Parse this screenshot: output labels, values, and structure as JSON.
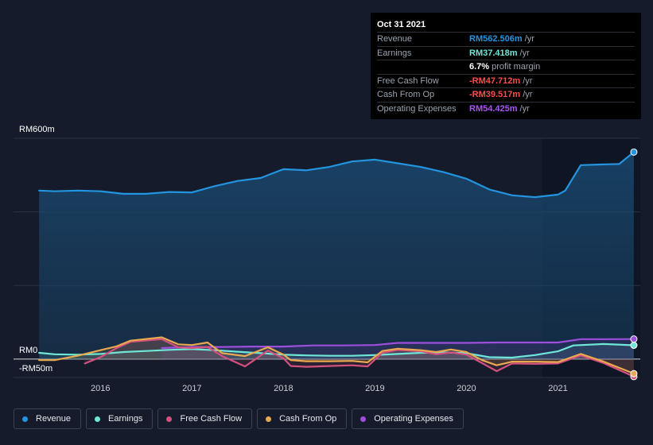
{
  "tooltip": {
    "date": "Oct 31 2021",
    "rows": [
      {
        "label": "Revenue",
        "value": "RM562.506m",
        "unit": "/yr",
        "color": "#2394df"
      },
      {
        "label": "Earnings",
        "value": "RM37.418m",
        "unit": "/yr",
        "color": "#6ee7d6"
      },
      {
        "label": "",
        "value": "6.7%",
        "unit": "profit margin",
        "color": "#ffffff"
      },
      {
        "label": "Free Cash Flow",
        "value": "-RM47.712m",
        "unit": "/yr",
        "color": "#ff4b4b"
      },
      {
        "label": "Cash From Op",
        "value": "-RM39.517m",
        "unit": "/yr",
        "color": "#ff4b4b"
      },
      {
        "label": "Operating Expenses",
        "value": "RM54.425m",
        "unit": "/yr",
        "color": "#a855f7"
      }
    ]
  },
  "legend": [
    {
      "label": "Revenue",
      "color": "#2394df"
    },
    {
      "label": "Earnings",
      "color": "#6ee7d6"
    },
    {
      "label": "Free Cash Flow",
      "color": "#d4507e"
    },
    {
      "label": "Cash From Op",
      "color": "#e8a94f"
    },
    {
      "label": "Operating Expenses",
      "color": "#9d4edd"
    }
  ],
  "chart_data": {
    "type": "line",
    "ylim": [
      -50,
      600
    ],
    "y_tick_labels": [
      {
        "value": 600,
        "label": "RM600m"
      },
      {
        "value": 0,
        "label": "RM0"
      },
      {
        "value": -50,
        "label": "-RM50m"
      }
    ],
    "x_ticks": [
      {
        "x": 2016,
        "label": "2016"
      },
      {
        "x": 2017,
        "label": "2017"
      },
      {
        "x": 2018,
        "label": "2018"
      },
      {
        "x": 2019,
        "label": "2019"
      },
      {
        "x": 2020,
        "label": "2020"
      },
      {
        "x": 2021,
        "label": "2021"
      }
    ],
    "xlim": [
      2015.05,
      2021.9
    ],
    "highlight_start": 2020.83,
    "grid": true,
    "series": [
      {
        "name": "Revenue",
        "color": "#2394df",
        "fill": true,
        "points": [
          [
            2015.33,
            458
          ],
          [
            2015.5,
            456
          ],
          [
            2015.75,
            458
          ],
          [
            2016.0,
            456
          ],
          [
            2016.25,
            449
          ],
          [
            2016.5,
            449
          ],
          [
            2016.75,
            454
          ],
          [
            2017.0,
            453
          ],
          [
            2017.25,
            470
          ],
          [
            2017.5,
            484
          ],
          [
            2017.75,
            492
          ],
          [
            2018.0,
            516
          ],
          [
            2018.25,
            513
          ],
          [
            2018.5,
            522
          ],
          [
            2018.75,
            537
          ],
          [
            2019.0,
            542
          ],
          [
            2019.25,
            532
          ],
          [
            2019.5,
            522
          ],
          [
            2019.75,
            508
          ],
          [
            2020.0,
            490
          ],
          [
            2020.25,
            461
          ],
          [
            2020.5,
            445
          ],
          [
            2020.75,
            440
          ],
          [
            2021.0,
            447
          ],
          [
            2021.08,
            458
          ],
          [
            2021.25,
            527
          ],
          [
            2021.5,
            529
          ],
          [
            2021.67,
            530
          ],
          [
            2021.83,
            562.5
          ]
        ]
      },
      {
        "name": "Earnings",
        "color": "#6ee7d6",
        "points": [
          [
            2015.33,
            17
          ],
          [
            2015.5,
            13
          ],
          [
            2015.75,
            12
          ],
          [
            2016.0,
            14
          ],
          [
            2016.25,
            19
          ],
          [
            2016.5,
            22
          ],
          [
            2016.75,
            25
          ],
          [
            2017.0,
            27
          ],
          [
            2017.25,
            24
          ],
          [
            2017.5,
            20
          ],
          [
            2017.75,
            16
          ],
          [
            2018.0,
            12
          ],
          [
            2018.25,
            10
          ],
          [
            2018.5,
            9
          ],
          [
            2018.75,
            9
          ],
          [
            2019.0,
            11
          ],
          [
            2019.25,
            14
          ],
          [
            2019.5,
            17
          ],
          [
            2019.75,
            18
          ],
          [
            2020.0,
            16
          ],
          [
            2020.25,
            5
          ],
          [
            2020.5,
            4
          ],
          [
            2020.75,
            11
          ],
          [
            2021.0,
            21
          ],
          [
            2021.17,
            37
          ],
          [
            2021.5,
            41
          ],
          [
            2021.83,
            37.4
          ]
        ]
      },
      {
        "name": "Free Cash Flow",
        "color": "#d4507e",
        "points": [
          [
            2015.83,
            -12
          ],
          [
            2016.0,
            5
          ],
          [
            2016.17,
            29
          ],
          [
            2016.33,
            47
          ],
          [
            2016.67,
            54
          ],
          [
            2016.85,
            32
          ],
          [
            2017.0,
            30
          ],
          [
            2017.17,
            33
          ],
          [
            2017.33,
            8
          ],
          [
            2017.58,
            -20
          ],
          [
            2017.83,
            23
          ],
          [
            2018.0,
            2
          ],
          [
            2018.08,
            -19
          ],
          [
            2018.25,
            -21
          ],
          [
            2018.5,
            -19
          ],
          [
            2018.75,
            -17
          ],
          [
            2018.92,
            -20
          ],
          [
            2019.08,
            17
          ],
          [
            2019.25,
            25
          ],
          [
            2019.5,
            21
          ],
          [
            2019.67,
            13
          ],
          [
            2019.83,
            18
          ],
          [
            2020.0,
            12
          ],
          [
            2020.17,
            -11
          ],
          [
            2020.33,
            -33
          ],
          [
            2020.5,
            -12
          ],
          [
            2020.75,
            -13
          ],
          [
            2021.0,
            -12
          ],
          [
            2021.25,
            10
          ],
          [
            2021.5,
            -11
          ],
          [
            2021.83,
            -47.7
          ]
        ]
      },
      {
        "name": "Cash From Op",
        "color": "#e8a94f",
        "points": [
          [
            2015.33,
            -3
          ],
          [
            2015.5,
            -3
          ],
          [
            2015.75,
            9
          ],
          [
            2016.0,
            24
          ],
          [
            2016.17,
            34
          ],
          [
            2016.33,
            50
          ],
          [
            2016.67,
            59
          ],
          [
            2016.85,
            40
          ],
          [
            2017.0,
            38
          ],
          [
            2017.17,
            45
          ],
          [
            2017.33,
            16
          ],
          [
            2017.58,
            8
          ],
          [
            2017.83,
            32
          ],
          [
            2018.0,
            12
          ],
          [
            2018.08,
            -3
          ],
          [
            2018.25,
            -6
          ],
          [
            2018.5,
            -6
          ],
          [
            2018.75,
            -5
          ],
          [
            2018.92,
            -9
          ],
          [
            2019.08,
            22
          ],
          [
            2019.25,
            28
          ],
          [
            2019.5,
            24
          ],
          [
            2019.67,
            19
          ],
          [
            2019.83,
            26
          ],
          [
            2020.0,
            19
          ],
          [
            2020.17,
            -3
          ],
          [
            2020.33,
            -17
          ],
          [
            2020.5,
            -7
          ],
          [
            2020.75,
            -7
          ],
          [
            2021.0,
            -8
          ],
          [
            2021.25,
            14
          ],
          [
            2021.5,
            -7
          ],
          [
            2021.83,
            -39.5
          ]
        ]
      },
      {
        "name": "Operating Expenses",
        "color": "#9d4edd",
        "points": [
          [
            2016.67,
            30
          ],
          [
            2017.0,
            33
          ],
          [
            2017.33,
            33
          ],
          [
            2017.67,
            34
          ],
          [
            2018.0,
            34
          ],
          [
            2018.33,
            37
          ],
          [
            2018.67,
            37
          ],
          [
            2019.0,
            38
          ],
          [
            2019.25,
            44
          ],
          [
            2019.5,
            44
          ],
          [
            2019.75,
            44
          ],
          [
            2020.0,
            44
          ],
          [
            2020.33,
            45
          ],
          [
            2020.67,
            45
          ],
          [
            2021.0,
            45
          ],
          [
            2021.25,
            54
          ],
          [
            2021.5,
            54
          ],
          [
            2021.83,
            54.4
          ]
        ]
      }
    ]
  }
}
